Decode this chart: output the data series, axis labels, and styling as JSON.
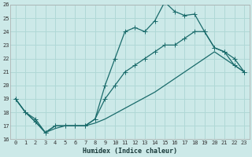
{
  "xlabel": "Humidex (Indice chaleur)",
  "bg_color": "#cce9e8",
  "grid_color": "#b0d8d6",
  "line_color": "#1a6b6b",
  "xlim": [
    -0.5,
    23.5
  ],
  "ylim": [
    16,
    26
  ],
  "xticks": [
    0,
    1,
    2,
    3,
    4,
    5,
    6,
    7,
    8,
    9,
    10,
    11,
    12,
    13,
    14,
    15,
    16,
    17,
    18,
    19,
    20,
    21,
    22,
    23
  ],
  "yticks": [
    16,
    17,
    18,
    19,
    20,
    21,
    22,
    23,
    24,
    25,
    26
  ],
  "line1_x": [
    0,
    1,
    2,
    3,
    4,
    5,
    6,
    7,
    8,
    9,
    10,
    11,
    12,
    13,
    14,
    15,
    16,
    17,
    18,
    19,
    20,
    21,
    22,
    23
  ],
  "line1_y": [
    19,
    18,
    17.5,
    16.5,
    17,
    17,
    17,
    17,
    17.5,
    20,
    22,
    24,
    24.3,
    24,
    24.8,
    26.2,
    25.5,
    25.2,
    25.3,
    24,
    22.8,
    22.5,
    21.5,
    21
  ],
  "line2_x": [
    0,
    1,
    2,
    3,
    4,
    5,
    6,
    7,
    8,
    9,
    10,
    11,
    12,
    13,
    14,
    15,
    16,
    17,
    18,
    19,
    20,
    21,
    22,
    23
  ],
  "line2_y": [
    19,
    18,
    17.3,
    16.5,
    17,
    17,
    17,
    17,
    17.5,
    19,
    20,
    21,
    21.5,
    22,
    22.5,
    23,
    23,
    23.5,
    24,
    24,
    22.8,
    22.5,
    22,
    21
  ],
  "line3_x": [
    0,
    1,
    2,
    3,
    4,
    5,
    6,
    7,
    8,
    9,
    10,
    11,
    12,
    13,
    14,
    15,
    16,
    17,
    18,
    19,
    20,
    21,
    22,
    23
  ],
  "line3_y": [
    19,
    18,
    17.3,
    16.5,
    16.8,
    17,
    17,
    17,
    17.2,
    17.5,
    17.9,
    18.3,
    18.7,
    19.1,
    19.5,
    20,
    20.5,
    21,
    21.5,
    22,
    22.5,
    22,
    21.5,
    21
  ]
}
